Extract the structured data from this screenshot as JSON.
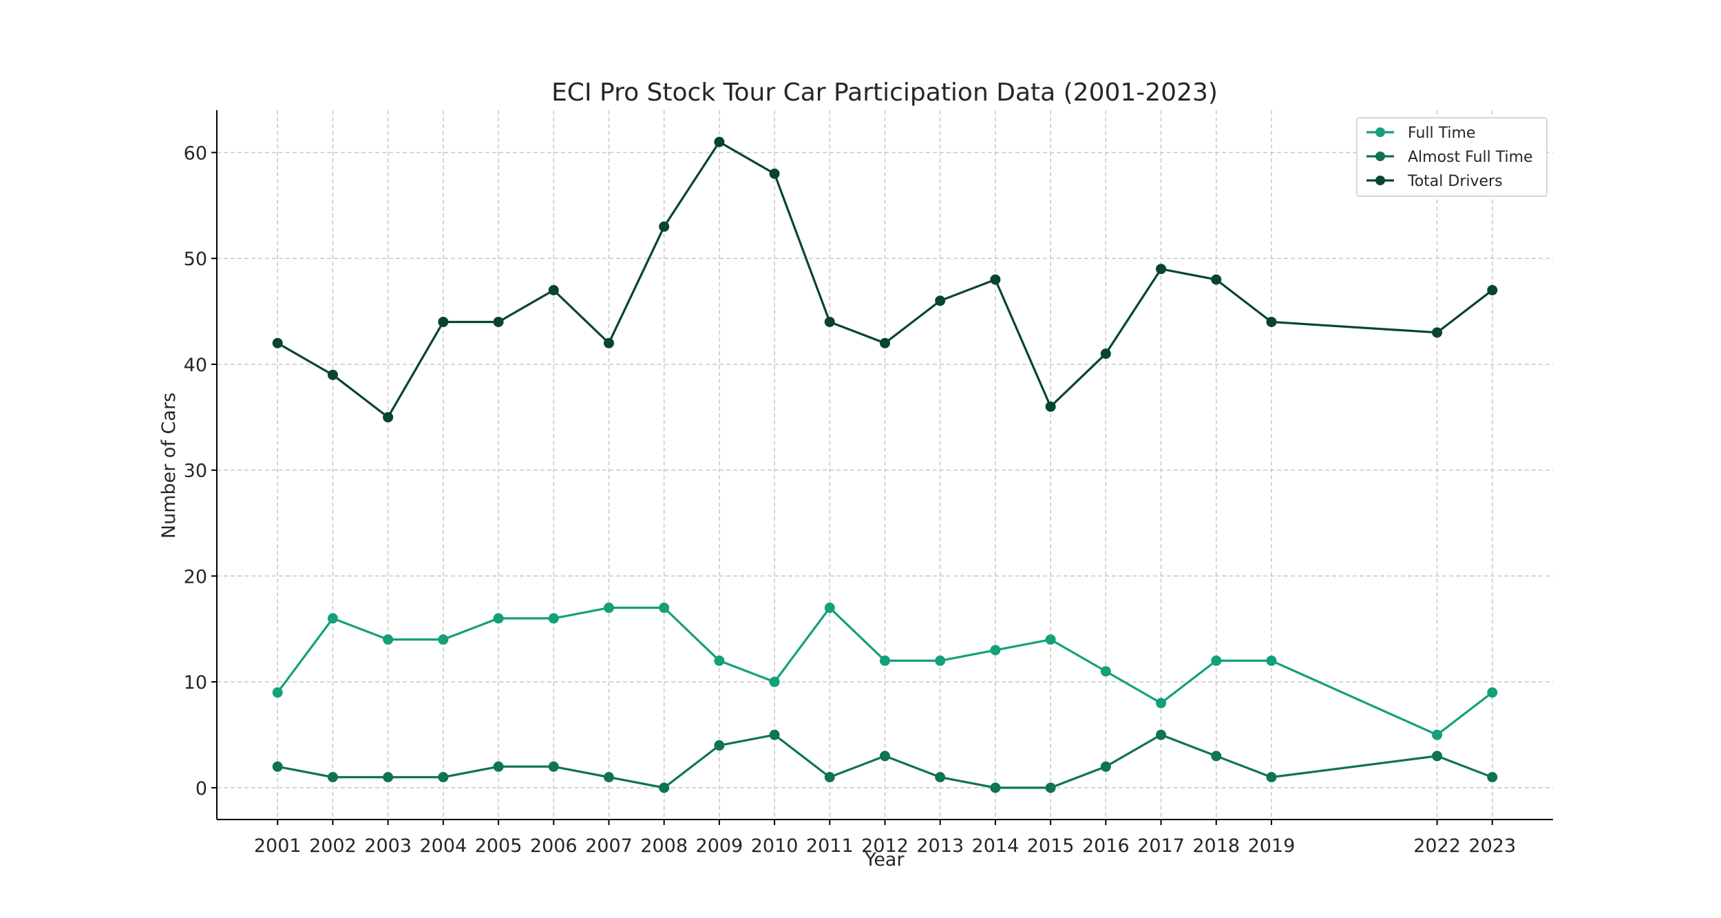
{
  "chart_data": {
    "type": "line",
    "title": "ECI Pro Stock Tour Car Participation Data (2001-2023)",
    "xlabel": "Year",
    "ylabel": "Number of Cars",
    "x": [
      2001,
      2002,
      2003,
      2004,
      2005,
      2006,
      2007,
      2008,
      2009,
      2010,
      2011,
      2012,
      2013,
      2014,
      2015,
      2016,
      2017,
      2018,
      2019,
      2022,
      2023
    ],
    "xticks": [
      "2001",
      "2002",
      "2003",
      "2004",
      "2005",
      "2006",
      "2007",
      "2008",
      "2009",
      "2010",
      "2011",
      "2012",
      "2013",
      "2014",
      "2015",
      "2016",
      "2017",
      "2018",
      "2019",
      "2022",
      "2023"
    ],
    "yticks": [
      "0",
      "10",
      "20",
      "30",
      "40",
      "50",
      "60"
    ],
    "ylim": [
      -3,
      64
    ],
    "xlim": [
      1999.9,
      2024.1
    ],
    "grid": true,
    "legend_position": "top-right",
    "series": [
      {
        "name": "Full Time",
        "color": "#13a07a",
        "values": [
          9,
          16,
          14,
          14,
          16,
          16,
          17,
          17,
          12,
          10,
          17,
          12,
          12,
          13,
          14,
          11,
          8,
          12,
          12,
          5,
          9
        ]
      },
      {
        "name": "Almost Full Time",
        "color": "#0f7355",
        "values": [
          2,
          1,
          1,
          1,
          2,
          2,
          1,
          0,
          4,
          5,
          1,
          3,
          1,
          0,
          0,
          2,
          5,
          3,
          1,
          3,
          1
        ]
      },
      {
        "name": "Total Drivers",
        "color": "#074532",
        "values": [
          42,
          39,
          35,
          44,
          44,
          47,
          42,
          53,
          61,
          58,
          44,
          42,
          46,
          48,
          36,
          41,
          49,
          48,
          44,
          43,
          47
        ]
      }
    ]
  }
}
